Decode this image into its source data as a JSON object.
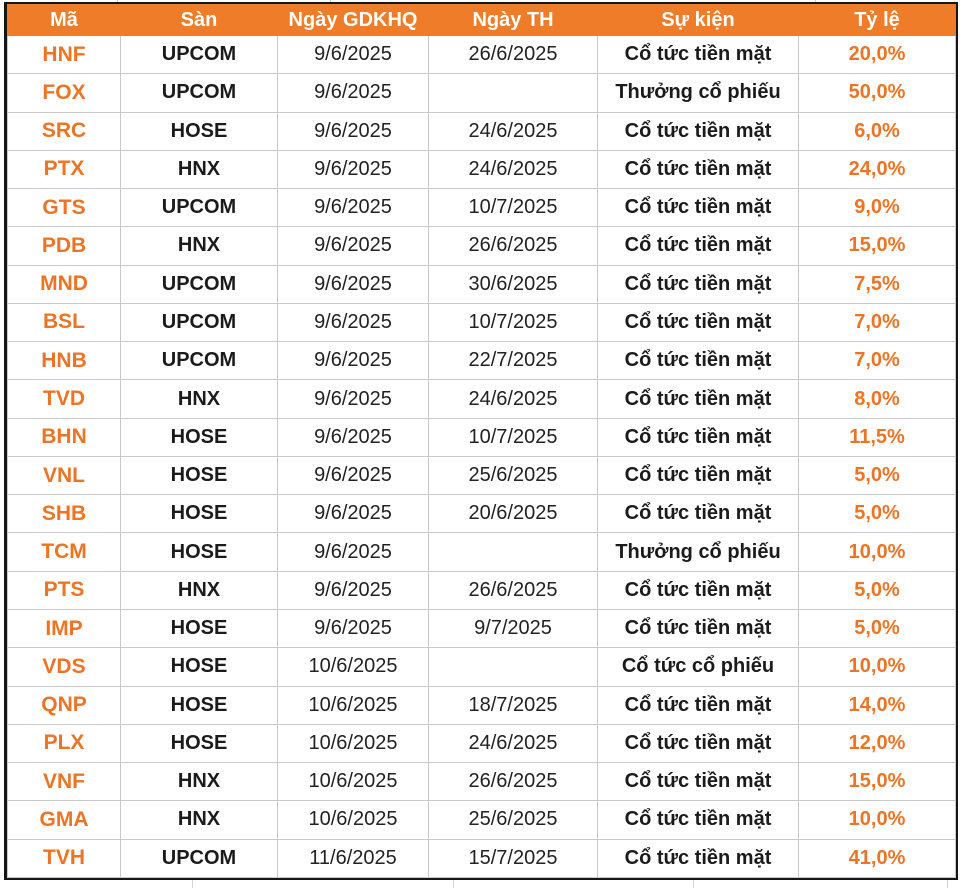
{
  "colors": {
    "header_bg": "#EE7C28",
    "header_text": "#FFFFFF",
    "accent_text": "#ED7424",
    "body_text": "#1B1B1B",
    "grid_line": "#C9C9C9",
    "outer_border": "#161616"
  },
  "table": {
    "columns": [
      {
        "key": "code",
        "label": "Mã"
      },
      {
        "key": "exchange",
        "label": "Sàn"
      },
      {
        "key": "ex_date",
        "label": "Ngày GDKHQ"
      },
      {
        "key": "th_date",
        "label": "Ngày TH"
      },
      {
        "key": "event",
        "label": "Sự kiện"
      },
      {
        "key": "ratio",
        "label": "Tỷ lệ"
      }
    ],
    "rows": [
      {
        "code": "HNF",
        "exchange": "UPCOM",
        "ex_date": "9/6/2025",
        "th_date": "26/6/2025",
        "event": "Cổ tức tiền mặt",
        "ratio": "20,0%"
      },
      {
        "code": "FOX",
        "exchange": "UPCOM",
        "ex_date": "9/6/2025",
        "th_date": "",
        "event": "Thưởng cổ phiếu",
        "ratio": "50,0%"
      },
      {
        "code": "SRC",
        "exchange": "HOSE",
        "ex_date": "9/6/2025",
        "th_date": "24/6/2025",
        "event": "Cổ tức tiền mặt",
        "ratio": "6,0%"
      },
      {
        "code": "PTX",
        "exchange": "HNX",
        "ex_date": "9/6/2025",
        "th_date": "24/6/2025",
        "event": "Cổ tức tiền mặt",
        "ratio": "24,0%"
      },
      {
        "code": "GTS",
        "exchange": "UPCOM",
        "ex_date": "9/6/2025",
        "th_date": "10/7/2025",
        "event": "Cổ tức tiền mặt",
        "ratio": "9,0%"
      },
      {
        "code": "PDB",
        "exchange": "HNX",
        "ex_date": "9/6/2025",
        "th_date": "26/6/2025",
        "event": "Cổ tức tiền mặt",
        "ratio": "15,0%"
      },
      {
        "code": "MND",
        "exchange": "UPCOM",
        "ex_date": "9/6/2025",
        "th_date": "30/6/2025",
        "event": "Cổ tức tiền mặt",
        "ratio": "7,5%"
      },
      {
        "code": "BSL",
        "exchange": "UPCOM",
        "ex_date": "9/6/2025",
        "th_date": "10/7/2025",
        "event": "Cổ tức tiền mặt",
        "ratio": "7,0%"
      },
      {
        "code": "HNB",
        "exchange": "UPCOM",
        "ex_date": "9/6/2025",
        "th_date": "22/7/2025",
        "event": "Cổ tức tiền mặt",
        "ratio": "7,0%"
      },
      {
        "code": "TVD",
        "exchange": "HNX",
        "ex_date": "9/6/2025",
        "th_date": "24/6/2025",
        "event": "Cổ tức tiền mặt",
        "ratio": "8,0%"
      },
      {
        "code": "BHN",
        "exchange": "HOSE",
        "ex_date": "9/6/2025",
        "th_date": "10/7/2025",
        "event": "Cổ tức tiền mặt",
        "ratio": "11,5%"
      },
      {
        "code": "VNL",
        "exchange": "HOSE",
        "ex_date": "9/6/2025",
        "th_date": "25/6/2025",
        "event": "Cổ tức tiền mặt",
        "ratio": "5,0%"
      },
      {
        "code": "SHB",
        "exchange": "HOSE",
        "ex_date": "9/6/2025",
        "th_date": "20/6/2025",
        "event": "Cổ tức tiền mặt",
        "ratio": "5,0%"
      },
      {
        "code": "TCM",
        "exchange": "HOSE",
        "ex_date": "9/6/2025",
        "th_date": "",
        "event": "Thưởng cổ phiếu",
        "ratio": "10,0%"
      },
      {
        "code": "PTS",
        "exchange": "HNX",
        "ex_date": "9/6/2025",
        "th_date": "26/6/2025",
        "event": "Cổ tức tiền mặt",
        "ratio": "5,0%"
      },
      {
        "code": "IMP",
        "exchange": "HOSE",
        "ex_date": "9/6/2025",
        "th_date": "9/7/2025",
        "event": "Cổ tức tiền mặt",
        "ratio": "5,0%"
      },
      {
        "code": "VDS",
        "exchange": "HOSE",
        "ex_date": "10/6/2025",
        "th_date": "",
        "event": "Cổ tức cổ phiếu",
        "ratio": "10,0%"
      },
      {
        "code": "QNP",
        "exchange": "HOSE",
        "ex_date": "10/6/2025",
        "th_date": "18/7/2025",
        "event": "Cổ tức tiền mặt",
        "ratio": "14,0%"
      },
      {
        "code": "PLX",
        "exchange": "HOSE",
        "ex_date": "10/6/2025",
        "th_date": "24/6/2025",
        "event": "Cổ tức tiền mặt",
        "ratio": "12,0%"
      },
      {
        "code": "VNF",
        "exchange": "HNX",
        "ex_date": "10/6/2025",
        "th_date": "26/6/2025",
        "event": "Cổ tức tiền mặt",
        "ratio": "15,0%"
      },
      {
        "code": "GMA",
        "exchange": "HNX",
        "ex_date": "10/6/2025",
        "th_date": "25/6/2025",
        "event": "Cổ tức tiền mặt",
        "ratio": "10,0%"
      },
      {
        "code": "TVH",
        "exchange": "UPCOM",
        "ex_date": "11/6/2025",
        "th_date": "15/7/2025",
        "event": "Cổ tức tiền mặt",
        "ratio": "41,0%"
      }
    ]
  }
}
